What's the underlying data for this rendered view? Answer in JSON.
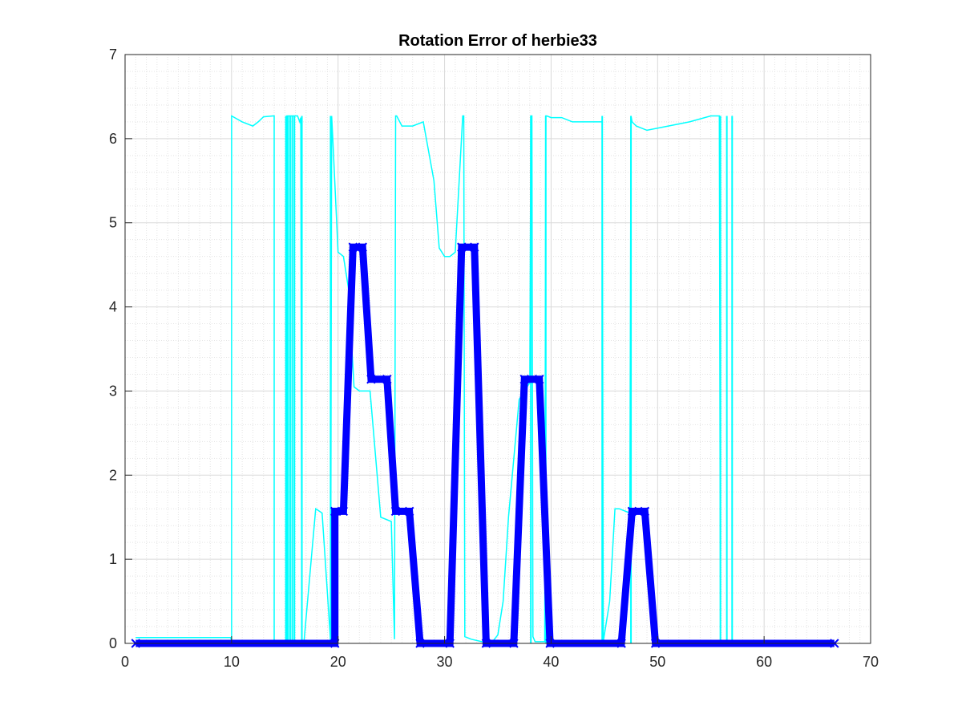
{
  "chart_data": {
    "type": "line",
    "title": "Rotation Error of herbie33",
    "xlabel": "",
    "ylabel": "",
    "xlim": [
      0,
      70
    ],
    "ylim": [
      0,
      7
    ],
    "xticks": [
      "0",
      "10",
      "20",
      "30",
      "40",
      "50",
      "60",
      "70"
    ],
    "yticks": [
      "0",
      "1",
      "2",
      "3",
      "4",
      "5",
      "6",
      "7"
    ],
    "grid": "major and minor",
    "legend": "none",
    "colors": {
      "thin": "#00ffff",
      "thick": "#0000ff",
      "axis": "#262626",
      "grid": "#d9d9d9"
    },
    "series": [
      {
        "style": "thin",
        "x": [
          1,
          9.9,
          10,
          10,
          11,
          12,
          12.5,
          13,
          13.9,
          14,
          14,
          15.2,
          15.2,
          16.2,
          16.4,
          16.5,
          16.6,
          16.8,
          17.9,
          18.5,
          19.3,
          19.4,
          19.5,
          20,
          20.5,
          21,
          21.5,
          22,
          23,
          24,
          25,
          25.3,
          25.4,
          25.5,
          26,
          27,
          28,
          29,
          29.5,
          30,
          30.5,
          31,
          31.7,
          31.8,
          31.9,
          32.5,
          33.5,
          34.5,
          35,
          35.5,
          36,
          37,
          38,
          38.1,
          38.2,
          38.3,
          38.5,
          39,
          39.4,
          39.5,
          39.6,
          40,
          41,
          42,
          43,
          44.8,
          44.9,
          45.5,
          46,
          46.4,
          47.4,
          47.5,
          47.6,
          48,
          49,
          51,
          53,
          55,
          55.8,
          55.9,
          56,
          62
        ],
        "y": [
          0.07,
          0.07,
          0.04,
          6.27,
          6.2,
          6.15,
          6.2,
          6.26,
          6.27,
          6.27,
          0.02,
          0.02,
          6.27,
          6.27,
          6.2,
          6.25,
          0.02,
          0.02,
          1.6,
          1.55,
          0.02,
          6.27,
          6.0,
          4.65,
          4.6,
          4.2,
          3.05,
          3.0,
          3.0,
          1.5,
          1.45,
          0.05,
          6.27,
          6.27,
          6.15,
          6.15,
          6.2,
          5.5,
          4.7,
          4.6,
          4.6,
          4.65,
          6.27,
          6.27,
          0.08,
          0.05,
          0.02,
          0.02,
          0.1,
          0.5,
          1.5,
          2.9,
          3.1,
          6.27,
          6.27,
          0.08,
          0.02,
          0.02,
          0.02,
          6.27,
          6.27,
          6.25,
          6.25,
          6.2,
          6.2,
          6.2,
          0.02,
          0.5,
          1.6,
          1.6,
          1.55,
          6.27,
          6.2,
          6.15,
          6.1,
          6.15,
          6.2,
          6.27,
          6.27,
          0.02,
          0.02,
          0.02
        ]
      },
      {
        "style": "thin-spikes",
        "x": [
          15.1,
          15.3,
          15.5,
          15.7,
          15.9,
          16.6,
          19.3,
          38.1,
          39.5,
          44.8,
          47.5,
          55.9,
          56.5,
          57.0
        ],
        "y": [
          6.27,
          6.27,
          6.27,
          6.27,
          6.27,
          6.27,
          6.27,
          6.27,
          6.27,
          6.27,
          6.27,
          6.27,
          6.27,
          6.27
        ]
      },
      {
        "style": "thick",
        "x": [
          1,
          19.7,
          19.7,
          20.5,
          21.4,
          22.3,
          23.1,
          24.6,
          25.4,
          26.7,
          27.7,
          30.5,
          31.6,
          32.8,
          33.9,
          36.5,
          37.5,
          38.9,
          39.9,
          46.6,
          47.6,
          48.8,
          49.8,
          66.6
        ],
        "y": [
          0,
          0,
          1.57,
          1.57,
          4.71,
          4.71,
          3.14,
          3.14,
          1.57,
          1.57,
          0,
          0,
          4.71,
          4.71,
          0,
          0,
          3.14,
          3.14,
          0,
          0,
          1.57,
          1.57,
          0,
          0
        ]
      }
    ]
  }
}
